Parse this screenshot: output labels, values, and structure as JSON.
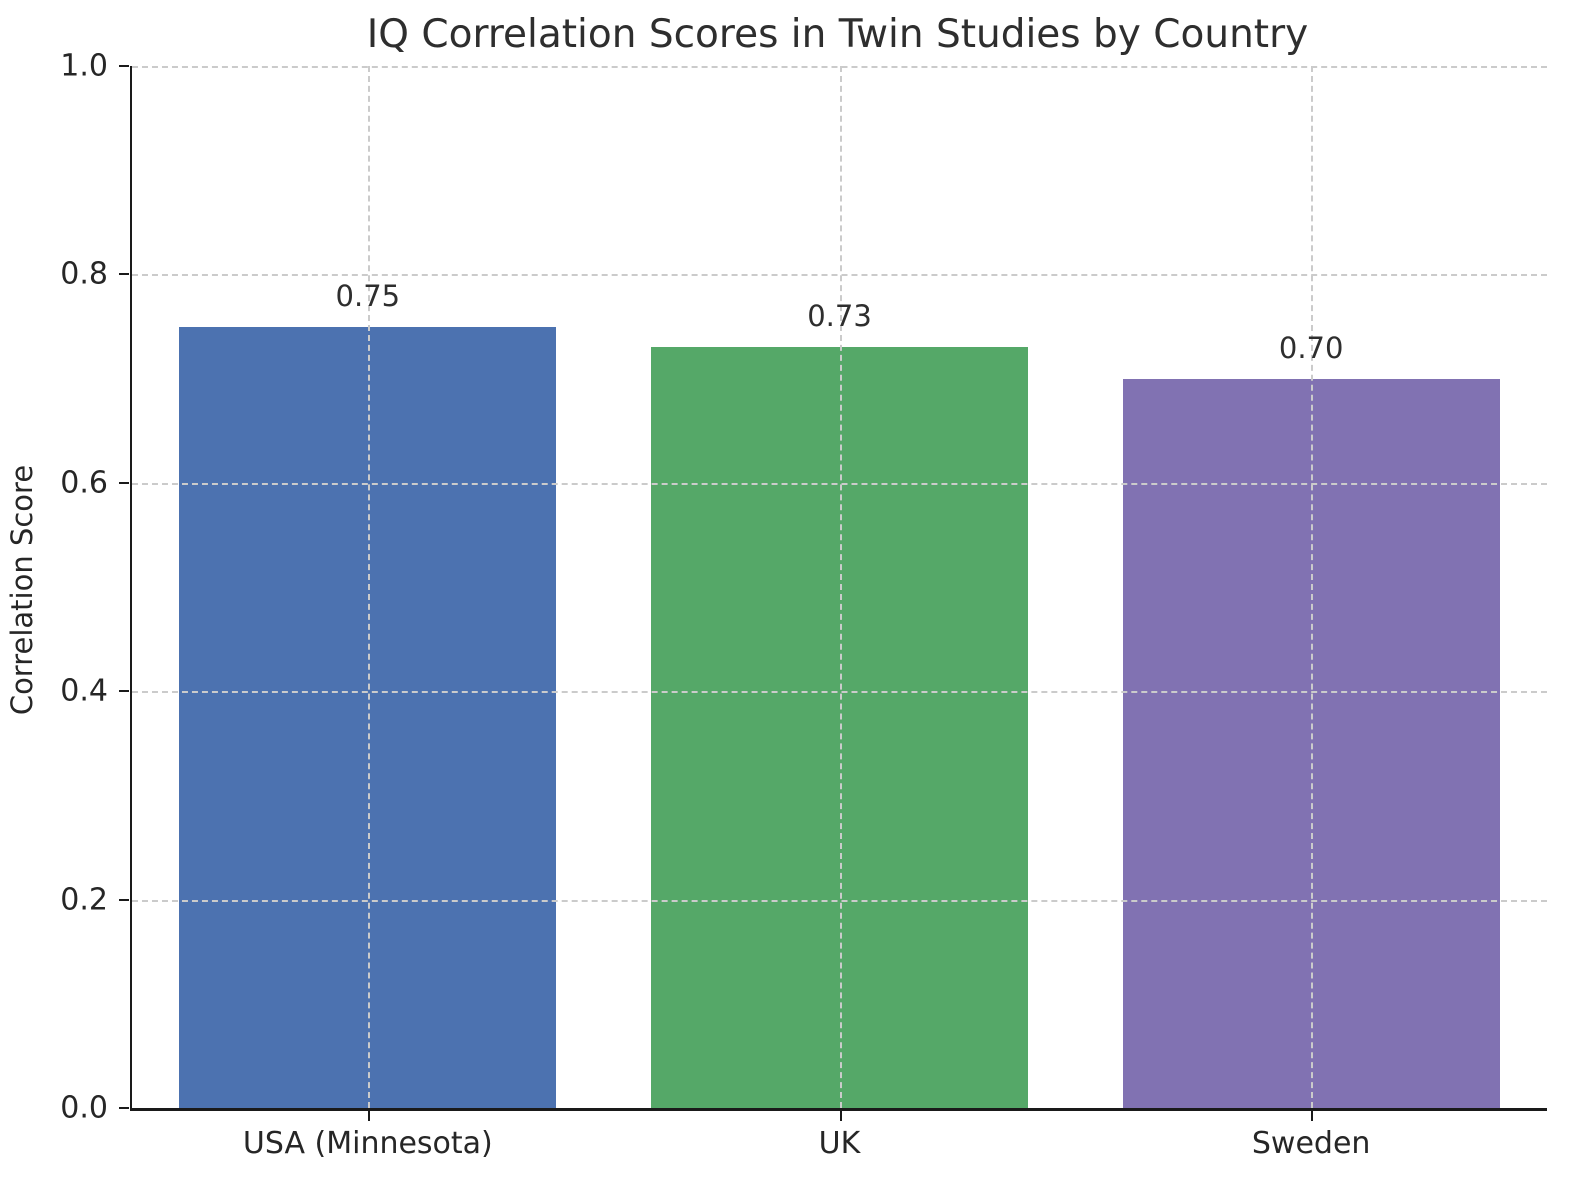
{
  "title": "IQ Correlation Scores in Twin Studies by Country",
  "chart_data": {
    "type": "bar",
    "title": "IQ Correlation Scores in Twin Studies by Country",
    "xlabel": "",
    "ylabel": "Correlation Score",
    "categories": [
      "USA (Minnesota)",
      "UK",
      "Sweden"
    ],
    "values": [
      0.75,
      0.73,
      0.7
    ],
    "value_labels": [
      "0.75",
      "0.73",
      "0.70"
    ],
    "bar_colors": [
      "#4C72B0",
      "#55A868",
      "#8172B2"
    ],
    "ylim": [
      0.0,
      1.0
    ],
    "ytick_labels": [
      "0.0",
      "0.2",
      "0.4",
      "0.6",
      "0.8",
      "1.0"
    ],
    "ytick_values": [
      0.0,
      0.2,
      0.4,
      0.6,
      0.8,
      1.0
    ],
    "bar_width_fraction": 0.8,
    "grid": "dashed gridlines on both axes, drawn above bars",
    "grid_color": "#cbcbcb",
    "spines": "left and bottom only, black",
    "legend": "none",
    "background_color": "#ffffff",
    "text_color": "#262626"
  }
}
